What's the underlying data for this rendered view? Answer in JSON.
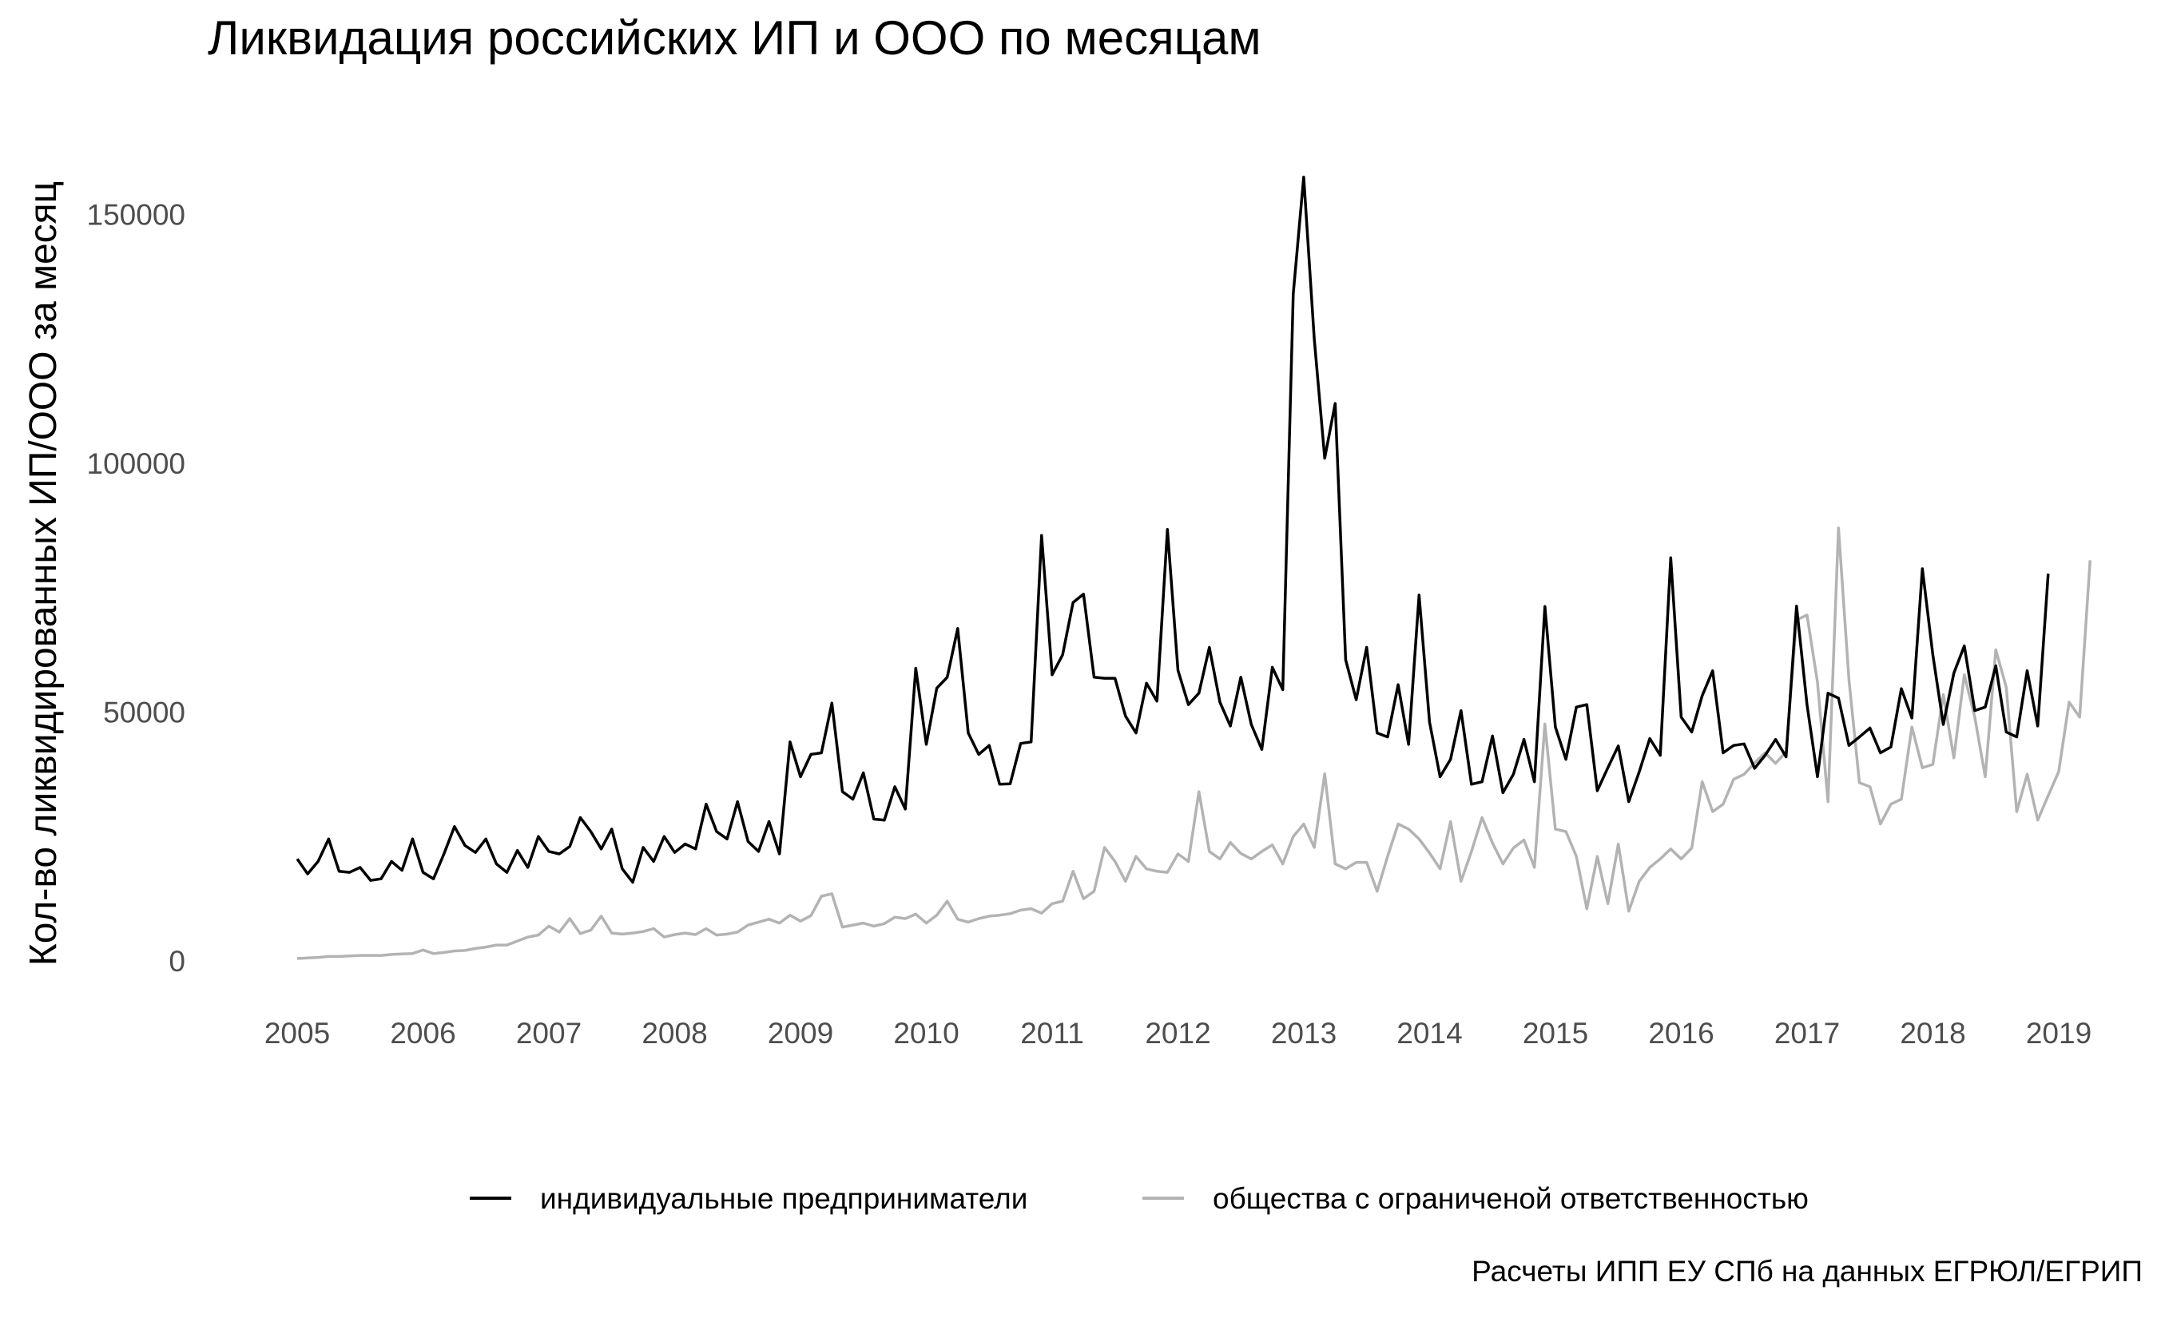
{
  "chart_data": {
    "type": "line",
    "title": "Ликвидация российских ИП и ООО по месяцам",
    "xlabel": "",
    "ylabel": "Кол-во ликвидированных ИП/ООО за месяц",
    "caption": "Расчеты ИПП ЕУ СПб на данных ЕГРЮЛ/ЕГРИП",
    "xlim": [
      2005,
      2019
    ],
    "ylim": [
      0,
      160000
    ],
    "x_ticks": [
      "2005",
      "2006",
      "2007",
      "2008",
      "2009",
      "2010",
      "2011",
      "2012",
      "2013",
      "2014",
      "2015",
      "2016",
      "2017",
      "2018",
      "2019"
    ],
    "y_ticks": [
      "0",
      "50000",
      "100000",
      "150000"
    ],
    "grid": false,
    "legend_position": "bottom",
    "x_start": 2005.0,
    "x_step": 0.08333,
    "series": [
      {
        "name": "индивидуальные предприниматели",
        "color": "#000000",
        "values": [
          20500,
          17500,
          20000,
          24500,
          18000,
          17800,
          18800,
          16200,
          16500,
          20000,
          18200,
          24500,
          17800,
          16500,
          21500,
          27000,
          23200,
          21800,
          24500,
          19500,
          17800,
          22200,
          18800,
          25000,
          22000,
          21500,
          23000,
          28800,
          26000,
          22500,
          26500,
          18500,
          15800,
          22800,
          20000,
          25000,
          21800,
          23500,
          22500,
          31500,
          26000,
          24500,
          32000,
          24000,
          22000,
          28000,
          21500,
          44000,
          37000,
          41500,
          41800,
          51800,
          34000,
          32500,
          37800,
          28500,
          28300,
          35000,
          30500,
          58800,
          43500,
          54800,
          57000,
          66800,
          45800,
          41500,
          43300,
          35500,
          35600,
          43700,
          44000,
          85500,
          57500,
          61500,
          72000,
          73700,
          57000,
          56800,
          56800,
          49200,
          45800,
          55800,
          52200,
          86700,
          58400,
          51500,
          53800,
          63000,
          52000,
          47200,
          57000,
          47500,
          42500,
          59000,
          54500,
          134000,
          157500,
          125000,
          101000,
          112000,
          60500,
          52500,
          63000,
          45800,
          45000,
          55500,
          43500,
          73500,
          48000,
          37000,
          40500,
          50300,
          35500,
          36000,
          45200,
          33800,
          37500,
          44500,
          36000,
          71200,
          47000,
          40500,
          51000,
          51500,
          34200,
          38800,
          43200,
          32000,
          38000,
          44700,
          41300,
          81000,
          49000,
          46000,
          53300,
          58300,
          41800,
          43300,
          43600,
          38700,
          41300,
          44500,
          41000,
          71300,
          51500,
          37000,
          53800,
          52800,
          43300,
          45000,
          46800,
          41800,
          43000,
          54700,
          48800,
          78800,
          61500,
          47500,
          57800,
          63300,
          50300,
          51000,
          59300,
          46000,
          45000,
          58300,
          47200,
          77800
        ]
      },
      {
        "name": "общества с ограниченой ответственностью",
        "color": "#b3b3b3",
        "values": [
          500,
          600,
          700,
          900,
          900,
          1000,
          1100,
          1100,
          1100,
          1300,
          1400,
          1500,
          2200,
          1500,
          1700,
          2000,
          2100,
          2500,
          2800,
          3200,
          3200,
          4000,
          4800,
          5200,
          7000,
          5800,
          8500,
          5500,
          6200,
          9000,
          5600,
          5400,
          5600,
          5900,
          6500,
          4800,
          5300,
          5600,
          5300,
          6500,
          5200,
          5400,
          5800,
          7200,
          7800,
          8400,
          7600,
          9200,
          8000,
          9100,
          13000,
          13500,
          6800,
          7200,
          7600,
          7000,
          7500,
          8800,
          8500,
          9400,
          7600,
          9200,
          12000,
          8400,
          7800,
          8500,
          9000,
          9200,
          9500,
          10200,
          10500,
          9600,
          11500,
          12000,
          18000,
          12500,
          14000,
          22800,
          20000,
          16000,
          21000,
          18500,
          18000,
          17800,
          21500,
          20000,
          34000,
          22000,
          20500,
          23800,
          21600,
          20500,
          22000,
          23300,
          19500,
          25000,
          27500,
          22800,
          37600,
          19500,
          18500,
          19800,
          19800,
          14000,
          21000,
          27500,
          26500,
          24500,
          21700,
          18500,
          28000,
          16000,
          22000,
          28800,
          23700,
          19500,
          22700,
          24300,
          18800,
          47600,
          26500,
          26000,
          21000,
          10500,
          21000,
          11500,
          23500,
          10000,
          16000,
          18800,
          20500,
          22500,
          20500,
          22700,
          36000,
          30000,
          31500,
          36500,
          37500,
          39800,
          41800,
          39700,
          42000,
          68500,
          69500,
          56000,
          32000,
          87000,
          56500,
          35800,
          35000,
          27500,
          31500,
          32500,
          47000,
          38800,
          39500,
          53500,
          40800,
          57500,
          49000,
          37000,
          62500,
          55000,
          30000,
          37500,
          28300,
          33200,
          38000,
          52000,
          49000,
          80500
        ]
      }
    ]
  }
}
